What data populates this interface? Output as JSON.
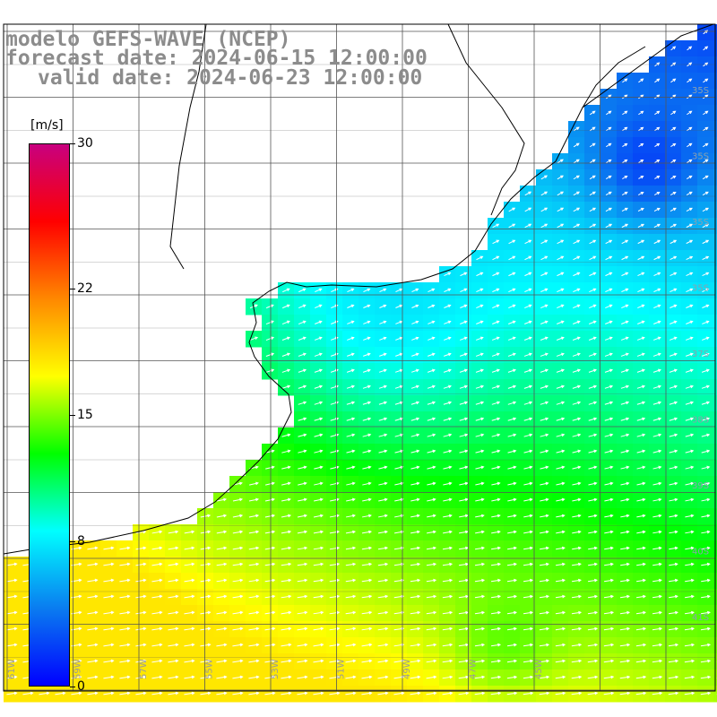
{
  "title": {
    "model": "modelo GEFS-WAVE (NCEP)",
    "forecast": "forecast date: 2024-06-15 12:00:00",
    "valid": "valid date: 2024-06-23 12:00:00"
  },
  "colorbar": {
    "unit": "[m/s]",
    "min": 0,
    "max": 30,
    "ticks": [
      {
        "label": "30",
        "value": 30
      },
      {
        "label": "22",
        "value": 22
      },
      {
        "label": "15",
        "value": 15
      },
      {
        "label": "8",
        "value": 8
      },
      {
        "label": "0",
        "value": 0
      }
    ],
    "colors": [
      "#0000ff",
      "#0a7cf0",
      "#00ffff",
      "#00ff00",
      "#ffff00",
      "#ff8800",
      "#ff0000",
      "#c8007f"
    ]
  },
  "map": {
    "lon_labels": [
      "61W",
      "59W",
      "57W",
      "55W",
      "53W",
      "51W",
      "49W",
      "47W",
      "45W"
    ],
    "lat_labels": [
      "35S",
      "35S",
      "35S",
      "35S",
      "37S",
      "38S",
      "39S",
      "40S",
      "41S"
    ],
    "background": "#ffffff",
    "grid_color": "#555555",
    "coast_color": "#000000"
  }
}
